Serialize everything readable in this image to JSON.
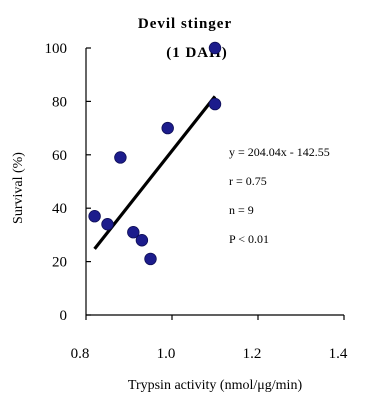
{
  "chart_data": {
    "type": "scatter",
    "title": "Devil stinger",
    "subtitle": "(1 DAH)",
    "xlabel": "Trypsin activity (nmol/μg/min)",
    "ylabel": "Survival (%)",
    "xlim": [
      0.8,
      1.4
    ],
    "ylim": [
      0,
      100
    ],
    "x_ticks": [
      "0.8",
      "1.0",
      "1.2",
      "1.4"
    ],
    "y_ticks": [
      "0",
      "20",
      "40",
      "60",
      "80",
      "100"
    ],
    "grid": false,
    "points": [
      {
        "x": 0.82,
        "y": 37
      },
      {
        "x": 0.85,
        "y": 34
      },
      {
        "x": 0.88,
        "y": 59
      },
      {
        "x": 0.91,
        "y": 31
      },
      {
        "x": 0.93,
        "y": 28
      },
      {
        "x": 0.95,
        "y": 21
      },
      {
        "x": 0.99,
        "y": 70
      },
      {
        "x": 1.1,
        "y": 79
      },
      {
        "x": 1.1,
        "y": 100
      }
    ],
    "point_color": "#1c1c8c",
    "trendline": {
      "x": [
        0.82,
        1.1
      ],
      "y": [
        24.78,
        81.9
      ]
    },
    "annotations": [
      "y = 204.04x - 142.55",
      "r = 0.75",
      "n = 9",
      "P < 0.01"
    ]
  }
}
